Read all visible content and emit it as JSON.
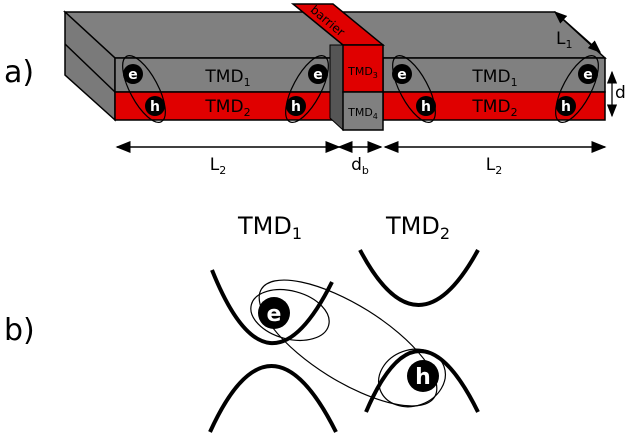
{
  "panel_a": {
    "label": "a)",
    "layers": [
      {
        "base": "TMD",
        "sub": "1"
      },
      {
        "base": "TMD",
        "sub": "2"
      },
      {
        "base": "TMD",
        "sub": "1"
      },
      {
        "base": "TMD",
        "sub": "2"
      }
    ],
    "barrier_label": "barrier",
    "barrier_layers": [
      {
        "base": "TMD",
        "sub": "3"
      },
      {
        "base": "TMD",
        "sub": "4"
      }
    ],
    "excitons": [
      {
        "electron": "e",
        "hole": "h"
      },
      {
        "electron": "e",
        "hole": "h"
      },
      {
        "electron": "e",
        "hole": "h"
      },
      {
        "electron": "e",
        "hole": "h"
      }
    ],
    "dimensions": {
      "width": {
        "base": "L",
        "sub": "1"
      },
      "thickness": "d",
      "left_length": {
        "base": "L",
        "sub": "2"
      },
      "barrier_length": {
        "base": "d",
        "sub": "b"
      },
      "right_length": {
        "base": "L",
        "sub": "2"
      }
    }
  },
  "panel_b": {
    "label": "b)",
    "bands": [
      {
        "base": "TMD",
        "sub": "1"
      },
      {
        "base": "TMD",
        "sub": "2"
      }
    ],
    "exciton": {
      "electron": "e",
      "hole": "h"
    }
  }
}
